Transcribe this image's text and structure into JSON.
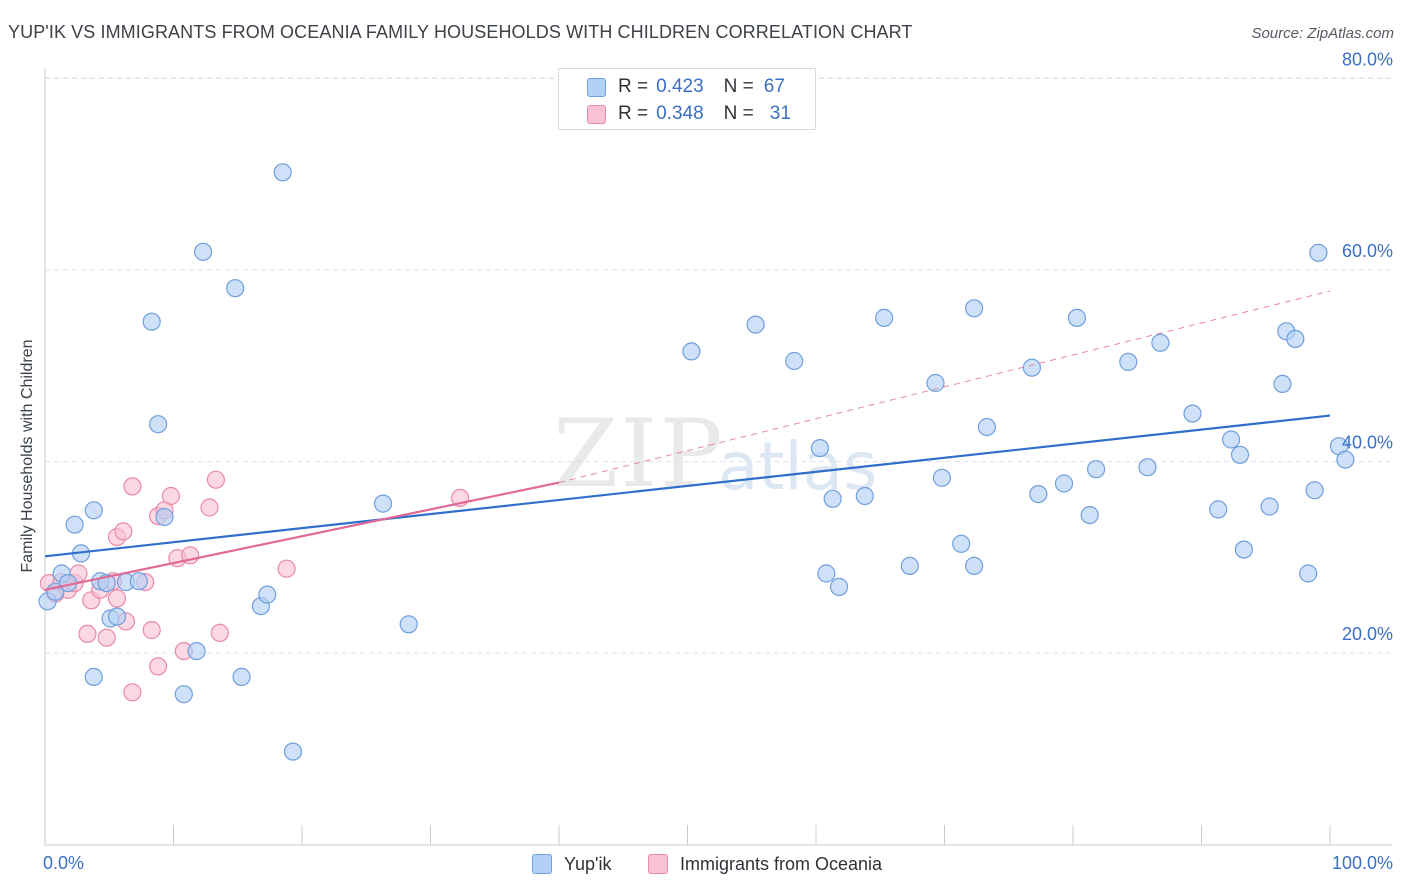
{
  "header": {
    "title": "YUP'IK VS IMMIGRANTS FROM OCEANIA FAMILY HOUSEHOLDS WITH CHILDREN CORRELATION CHART",
    "source": "Source: ZipAtlas.com"
  },
  "watermark": {
    "zip": "ZIP",
    "atlas": "atlas"
  },
  "legend": {
    "r_label": "R =",
    "n_label": "N =",
    "series": [
      {
        "name": "Yup'ik",
        "r": "0.423",
        "n": "67"
      },
      {
        "name": "Immigrants from Oceania",
        "r": "0.348",
        "n": "31"
      }
    ]
  },
  "colors": {
    "blue_fill": "#b3d1f5",
    "blue_stroke": "#6f9fdc",
    "blue_line": "#2f6fcc",
    "pink_fill": "#f9c3d4",
    "pink_stroke": "#e88aa8",
    "pink_line": "#e06a96",
    "grid": "#dfe2e6",
    "axis_label": "#3a6fc4"
  },
  "chart_data": {
    "type": "scatter",
    "title": "YUP'IK VS IMMIGRANTS FROM OCEANIA FAMILY HOUSEHOLDS WITH CHILDREN CORRELATION CHART",
    "xlabel": "",
    "ylabel": "Family Households with Children",
    "xlim": [
      0,
      100
    ],
    "ylim": [
      0,
      80
    ],
    "x_tick_labels": [
      "0.0%",
      "100.0%"
    ],
    "y_ticks": [
      20,
      40,
      60,
      80
    ],
    "y_tick_labels": [
      "20.0%",
      "40.0%",
      "60.0%",
      "80.0%"
    ],
    "grid": true,
    "legend_position": "top-center",
    "series": [
      {
        "name": "Yup'ik",
        "r": 0.423,
        "n": 67,
        "trend": {
          "x": [
            0,
            100
          ],
          "y": [
            30.1,
            44.8
          ]
        },
        "points": [
          [
            0.2,
            25.4
          ],
          [
            0.8,
            26.4
          ],
          [
            1.3,
            28.3
          ],
          [
            1.8,
            27.3
          ],
          [
            2.3,
            33.4
          ],
          [
            2.8,
            30.4
          ],
          [
            3.8,
            34.9
          ],
          [
            4.3,
            27.5
          ],
          [
            4.8,
            27.3
          ],
          [
            5.1,
            23.6
          ],
          [
            5.6,
            23.8
          ],
          [
            6.3,
            27.4
          ],
          [
            7.3,
            27.5
          ],
          [
            8.3,
            54.6
          ],
          [
            8.8,
            43.9
          ],
          [
            9.3,
            34.2
          ],
          [
            10.8,
            15.7
          ],
          [
            11.8,
            20.2
          ],
          [
            12.3,
            61.9
          ],
          [
            14.8,
            58.1
          ],
          [
            15.3,
            17.5
          ],
          [
            16.8,
            24.9
          ],
          [
            17.3,
            26.1
          ],
          [
            18.5,
            70.2
          ],
          [
            19.3,
            9.7
          ],
          [
            26.3,
            35.6
          ],
          [
            28.3,
            23.0
          ],
          [
            3.8,
            17.5
          ],
          [
            50.3,
            51.5
          ],
          [
            55.3,
            54.3
          ],
          [
            58.3,
            50.5
          ],
          [
            60.3,
            41.4
          ],
          [
            60.8,
            28.3
          ],
          [
            61.3,
            36.1
          ],
          [
            61.8,
            26.9
          ],
          [
            63.8,
            36.4
          ],
          [
            65.3,
            55.0
          ],
          [
            67.3,
            29.1
          ],
          [
            69.3,
            48.2
          ],
          [
            69.8,
            38.3
          ],
          [
            71.3,
            31.4
          ],
          [
            72.3,
            56.0
          ],
          [
            72.3,
            29.1
          ],
          [
            73.3,
            43.6
          ],
          [
            76.8,
            49.8
          ],
          [
            77.3,
            36.6
          ],
          [
            79.3,
            37.7
          ],
          [
            80.3,
            55.0
          ],
          [
            81.3,
            34.4
          ],
          [
            81.8,
            39.2
          ],
          [
            84.3,
            50.4
          ],
          [
            85.8,
            39.4
          ],
          [
            86.8,
            52.4
          ],
          [
            89.3,
            45.0
          ],
          [
            91.3,
            35.0
          ],
          [
            92.3,
            42.3
          ],
          [
            93.0,
            40.7
          ],
          [
            93.3,
            30.8
          ],
          [
            95.3,
            35.3
          ],
          [
            96.3,
            48.1
          ],
          [
            96.6,
            53.6
          ],
          [
            97.3,
            52.8
          ],
          [
            98.3,
            28.3
          ],
          [
            98.8,
            37.0
          ],
          [
            99.1,
            61.8
          ],
          [
            100.7,
            41.6
          ],
          [
            101.2,
            40.2
          ]
        ]
      },
      {
        "name": "Immigrants from Oceania",
        "r": 0.348,
        "n": 31,
        "trend": {
          "x": [
            0,
            40
          ],
          "y": [
            26.6,
            37.8
          ],
          "dashed_extension": {
            "x": [
              40,
              100
            ],
            "y": [
              37.8,
              57.8
            ]
          }
        },
        "points": [
          [
            0.3,
            27.3
          ],
          [
            0.8,
            26.2
          ],
          [
            1.3,
            27.4
          ],
          [
            1.8,
            26.6
          ],
          [
            2.3,
            27.3
          ],
          [
            2.6,
            28.3
          ],
          [
            3.3,
            22.0
          ],
          [
            3.6,
            25.5
          ],
          [
            4.3,
            26.6
          ],
          [
            4.8,
            21.6
          ],
          [
            5.3,
            27.5
          ],
          [
            5.6,
            32.1
          ],
          [
            5.6,
            25.7
          ],
          [
            6.1,
            32.7
          ],
          [
            6.3,
            23.3
          ],
          [
            6.8,
            15.9
          ],
          [
            6.8,
            37.4
          ],
          [
            7.8,
            27.4
          ],
          [
            8.3,
            22.4
          ],
          [
            8.8,
            34.3
          ],
          [
            8.8,
            18.6
          ],
          [
            9.3,
            34.9
          ],
          [
            9.8,
            36.4
          ],
          [
            10.3,
            29.9
          ],
          [
            10.8,
            20.2
          ],
          [
            11.3,
            30.2
          ],
          [
            12.8,
            35.2
          ],
          [
            13.3,
            38.1
          ],
          [
            13.6,
            22.1
          ],
          [
            18.8,
            28.8
          ],
          [
            32.3,
            36.2
          ]
        ]
      }
    ]
  }
}
